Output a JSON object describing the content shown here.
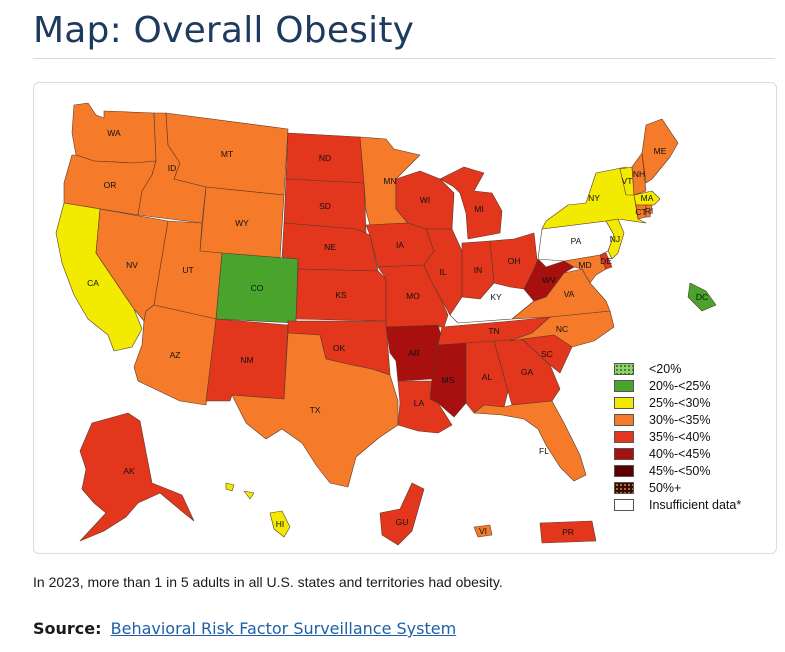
{
  "page": {
    "title": "Map: Overall Obesity",
    "caption": "In 2023, more than 1 in 5 adults in all U.S. states and territories had obesity.",
    "source_label": "Source:",
    "source_link": "Behavioral Risk Factor Surveillance System"
  },
  "colors": {
    "lt20": "#8fd16b",
    "c20_25": "#4aa32c",
    "c25_30": "#f2ea00",
    "c30_35": "#f57a2a",
    "c35_40": "#e2361d",
    "c40_45": "#a80f0f",
    "c45_50": "#5a0000",
    "c50p": "#3a0a00",
    "insufficient": "#ffffff"
  },
  "legend": [
    {
      "label": "<20%",
      "color": "#8fd16b",
      "pattern": "dots"
    },
    {
      "label": "20%-<25%",
      "color": "#4aa32c"
    },
    {
      "label": "25%-<30%",
      "color": "#f2ea00"
    },
    {
      "label": "30%-<35%",
      "color": "#f57a2a"
    },
    {
      "label": "35%-<40%",
      "color": "#e2361d"
    },
    {
      "label": "40%-<45%",
      "color": "#a80f0f"
    },
    {
      "label": "45%-<50%",
      "color": "#5a0000"
    },
    {
      "label": "50%+",
      "color": "#3a0a00",
      "pattern": "dots"
    },
    {
      "label": "Insufficient data*",
      "color": "#ffffff"
    }
  ],
  "states": [
    {
      "abbr": "WA",
      "category": "30%-<35%"
    },
    {
      "abbr": "OR",
      "category": "30%-<35%"
    },
    {
      "abbr": "CA",
      "category": "25%-<30%"
    },
    {
      "abbr": "ID",
      "category": "30%-<35%"
    },
    {
      "abbr": "NV",
      "category": "30%-<35%"
    },
    {
      "abbr": "MT",
      "category": "30%-<35%"
    },
    {
      "abbr": "WY",
      "category": "30%-<35%"
    },
    {
      "abbr": "UT",
      "category": "30%-<35%"
    },
    {
      "abbr": "AZ",
      "category": "30%-<35%"
    },
    {
      "abbr": "CO",
      "category": "20%-<25%"
    },
    {
      "abbr": "NM",
      "category": "35%-<40%"
    },
    {
      "abbr": "ND",
      "category": "35%-<40%"
    },
    {
      "abbr": "SD",
      "category": "35%-<40%"
    },
    {
      "abbr": "NE",
      "category": "35%-<40%"
    },
    {
      "abbr": "KS",
      "category": "35%-<40%"
    },
    {
      "abbr": "OK",
      "category": "35%-<40%"
    },
    {
      "abbr": "TX",
      "category": "30%-<35%"
    },
    {
      "abbr": "MN",
      "category": "30%-<35%"
    },
    {
      "abbr": "IA",
      "category": "35%-<40%"
    },
    {
      "abbr": "MO",
      "category": "35%-<40%"
    },
    {
      "abbr": "AR",
      "category": "40%-<45%"
    },
    {
      "abbr": "LA",
      "category": "35%-<40%"
    },
    {
      "abbr": "WI",
      "category": "35%-<40%"
    },
    {
      "abbr": "IL",
      "category": "35%-<40%"
    },
    {
      "abbr": "MS",
      "category": "40%-<45%"
    },
    {
      "abbr": "MI",
      "category": "35%-<40%"
    },
    {
      "abbr": "IN",
      "category": "35%-<40%"
    },
    {
      "abbr": "OH",
      "category": "35%-<40%"
    },
    {
      "abbr": "KY",
      "category": "Insufficient data*"
    },
    {
      "abbr": "TN",
      "category": "35%-<40%"
    },
    {
      "abbr": "AL",
      "category": "35%-<40%"
    },
    {
      "abbr": "GA",
      "category": "35%-<40%"
    },
    {
      "abbr": "FL",
      "category": "30%-<35%"
    },
    {
      "abbr": "SC",
      "category": "35%-<40%"
    },
    {
      "abbr": "NC",
      "category": "30%-<35%"
    },
    {
      "abbr": "VA",
      "category": "30%-<35%"
    },
    {
      "abbr": "WV",
      "category": "40%-<45%"
    },
    {
      "abbr": "PA",
      "category": "Insufficient data*"
    },
    {
      "abbr": "NY",
      "category": "25%-<30%"
    },
    {
      "abbr": "VT",
      "category": "25%-<30%"
    },
    {
      "abbr": "NH",
      "category": "30%-<35%"
    },
    {
      "abbr": "ME",
      "category": "30%-<35%"
    },
    {
      "abbr": "MA",
      "category": "25%-<30%"
    },
    {
      "abbr": "CT",
      "category": "30%-<35%"
    },
    {
      "abbr": "RI",
      "category": "30%-<35%"
    },
    {
      "abbr": "NJ",
      "category": "25%-<30%"
    },
    {
      "abbr": "DE",
      "category": "35%-<40%"
    },
    {
      "abbr": "MD",
      "category": "30%-<35%"
    },
    {
      "abbr": "DC",
      "category": "20%-<25%"
    },
    {
      "abbr": "AK",
      "category": "35%-<40%"
    },
    {
      "abbr": "HI",
      "category": "25%-<30%"
    },
    {
      "abbr": "GU",
      "category": "35%-<40%"
    },
    {
      "abbr": "VI",
      "category": "30%-<35%"
    },
    {
      "abbr": "PR",
      "category": "35%-<40%"
    }
  ]
}
